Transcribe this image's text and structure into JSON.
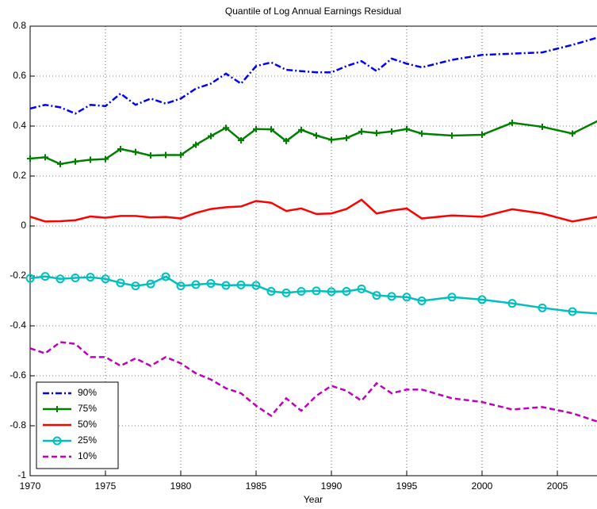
{
  "chart_data": {
    "type": "line",
    "title": "Quantile of Log Annual Earnings Residual",
    "x_label": "Year",
    "x": [
      1970,
      1971,
      1972,
      1973,
      1974,
      1975,
      1976,
      1977,
      1978,
      1979,
      1980,
      1981,
      1982,
      1983,
      1984,
      1985,
      1986,
      1987,
      1988,
      1989,
      1990,
      1991,
      1992,
      1993,
      1994,
      1995,
      1996,
      1998,
      2000,
      2002,
      2004,
      2006,
      2008
    ],
    "xlim": [
      1970,
      2008
    ],
    "xticks": [
      1970,
      1975,
      1980,
      1985,
      1990,
      1995,
      2000,
      2005
    ],
    "ylim": [
      -1,
      0.8
    ],
    "yticks": [
      -1,
      -0.8,
      -0.6,
      -0.4,
      -0.2,
      0,
      0.2,
      0.4,
      0.6,
      0.8
    ],
    "grid": true,
    "legend_position": "lower-left",
    "series": [
      {
        "name": "90%",
        "color": "#0000ff",
        "line_style": "dashdot",
        "marker": "none",
        "values": [
          0.47,
          0.485,
          0.475,
          0.45,
          0.485,
          0.48,
          0.53,
          0.485,
          0.51,
          0.49,
          0.51,
          0.55,
          0.57,
          0.61,
          0.57,
          0.64,
          0.655,
          0.625,
          0.62,
          0.615,
          0.615,
          0.64,
          0.66,
          0.62,
          0.67,
          0.65,
          0.635,
          0.665,
          0.685,
          0.69,
          0.695,
          0.725,
          0.76
        ]
      },
      {
        "name": "75%",
        "color": "#008000",
        "line_style": "solid",
        "marker": "plus",
        "values": [
          0.27,
          0.275,
          0.248,
          0.258,
          0.265,
          0.268,
          0.308,
          0.296,
          0.282,
          0.284,
          0.284,
          0.325,
          0.36,
          0.393,
          0.343,
          0.388,
          0.387,
          0.34,
          0.385,
          0.362,
          0.345,
          0.352,
          0.378,
          0.372,
          0.378,
          0.388,
          0.37,
          0.362,
          0.365,
          0.413,
          0.397,
          0.37,
          0.43
        ]
      },
      {
        "name": "50%",
        "color": "#ff0000",
        "line_style": "solid",
        "marker": "none",
        "values": [
          0.037,
          0.018,
          0.019,
          0.023,
          0.038,
          0.033,
          0.04,
          0.04,
          0.034,
          0.036,
          0.03,
          0.052,
          0.068,
          0.075,
          0.078,
          0.1,
          0.093,
          0.06,
          0.07,
          0.048,
          0.05,
          0.068,
          0.105,
          0.05,
          0.062,
          0.07,
          0.03,
          0.042,
          0.037,
          0.067,
          0.05,
          0.018,
          0.04
        ]
      },
      {
        "name": "25%",
        "color": "#00bfbf",
        "line_style": "solid",
        "marker": "circle",
        "values": [
          -0.21,
          -0.202,
          -0.212,
          -0.208,
          -0.205,
          -0.212,
          -0.228,
          -0.24,
          -0.232,
          -0.203,
          -0.24,
          -0.235,
          -0.23,
          -0.238,
          -0.236,
          -0.238,
          -0.262,
          -0.268,
          -0.262,
          -0.26,
          -0.263,
          -0.262,
          -0.252,
          -0.278,
          -0.282,
          -0.285,
          -0.3,
          -0.285,
          -0.295,
          -0.31,
          -0.328,
          -0.343,
          -0.352
        ]
      },
      {
        "name": "10%",
        "color": "#bf00bf",
        "line_style": "dashed",
        "marker": "none",
        "values": [
          -0.49,
          -0.51,
          -0.465,
          -0.472,
          -0.525,
          -0.525,
          -0.56,
          -0.53,
          -0.56,
          -0.525,
          -0.55,
          -0.59,
          -0.615,
          -0.65,
          -0.67,
          -0.72,
          -0.76,
          -0.69,
          -0.74,
          -0.68,
          -0.64,
          -0.66,
          -0.7,
          -0.63,
          -0.67,
          -0.655,
          -0.655,
          -0.69,
          -0.705,
          -0.735,
          -0.725,
          -0.75,
          -0.79
        ]
      }
    ]
  }
}
